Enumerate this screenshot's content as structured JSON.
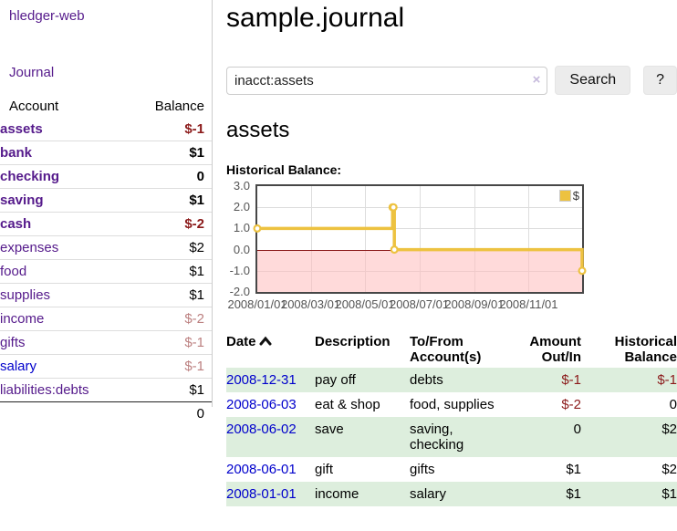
{
  "brand": "hledger-web",
  "colors": {
    "link_purple": "#551A8B",
    "link_blue": "#0000CC",
    "negative_strong": "#8B1A1A",
    "negative_dim": "#BC8080",
    "row_stripe_green": "#DDEEDD",
    "chart_series_gold": "#EDC240",
    "chart_negative_region": "#FFD9D9",
    "chart_zero_line": "#8B1A1A"
  },
  "sidebar": {
    "journal_link": "Journal",
    "header": {
      "account": "Account",
      "balance": "Balance"
    },
    "accounts": [
      {
        "name": "assets",
        "indent": 1,
        "bold": true,
        "dim": false,
        "blue": false,
        "balance": "$-1"
      },
      {
        "name": "bank",
        "indent": 2,
        "bold": true,
        "dim": false,
        "blue": false,
        "balance": "$1"
      },
      {
        "name": "checking",
        "indent": 3,
        "bold": true,
        "dim": false,
        "blue": false,
        "balance": "0"
      },
      {
        "name": "saving",
        "indent": 3,
        "bold": true,
        "dim": false,
        "blue": false,
        "balance": "$1"
      },
      {
        "name": "cash",
        "indent": 2,
        "bold": true,
        "dim": false,
        "blue": false,
        "balance": "$-2"
      },
      {
        "name": "expenses",
        "indent": 1,
        "bold": false,
        "dim": false,
        "blue": false,
        "balance": "$2"
      },
      {
        "name": "food",
        "indent": 2,
        "bold": false,
        "dim": false,
        "blue": false,
        "balance": "$1"
      },
      {
        "name": "supplies",
        "indent": 2,
        "bold": false,
        "dim": false,
        "blue": false,
        "balance": "$1"
      },
      {
        "name": "income",
        "indent": 1,
        "bold": false,
        "dim": true,
        "blue": false,
        "balance": "$-2"
      },
      {
        "name": "gifts",
        "indent": 2,
        "bold": false,
        "dim": true,
        "blue": false,
        "balance": "$-1"
      },
      {
        "name": "salary",
        "indent": 2,
        "bold": false,
        "dim": true,
        "blue": true,
        "balance": "$-1"
      },
      {
        "name": "liabilities:debts",
        "indent": 1,
        "bold": false,
        "dim": false,
        "blue": false,
        "balance": "$1"
      }
    ],
    "total": "0"
  },
  "main": {
    "title": "sample.journal",
    "search": {
      "value": "inacct:assets",
      "clear_icon": "×",
      "search_label": "Search",
      "help_label": "?"
    },
    "account_heading": "assets",
    "chart_label": "Historical Balance:"
  },
  "chart_data": {
    "type": "line",
    "title": "Historical Balance",
    "step": true,
    "series": [
      {
        "name": "$",
        "color": "#EDC240",
        "points": [
          {
            "x": "2008-01-01",
            "y": 1
          },
          {
            "x": "2008-06-01",
            "y": 2
          },
          {
            "x": "2008-06-02",
            "y": 2
          },
          {
            "x": "2008-06-03",
            "y": 0
          },
          {
            "x": "2008-12-31",
            "y": -1
          }
        ]
      }
    ],
    "xlim": [
      "2008-01-01",
      "2008-12-31"
    ],
    "ylim": [
      -2,
      3
    ],
    "yticks": [
      3.0,
      2.0,
      1.0,
      0.0,
      -1.0,
      -2.0
    ],
    "ytick_labels": [
      "3.0",
      "2.0",
      "1.0",
      "0.0",
      "-1.0",
      "-2.0"
    ],
    "xticks": [
      "2008/01/01",
      "2008/03/01",
      "2008/05/01",
      "2008/07/01",
      "2008/09/01",
      "2008/11/01"
    ],
    "grid": true,
    "legend": {
      "label": "$",
      "position": "top-right"
    },
    "negative_region_shaded": true
  },
  "register": {
    "headers": [
      "Date",
      "Description",
      "To/From Account(s)",
      "Amount Out/In",
      "Historical Balance"
    ],
    "rows": [
      {
        "date": "2008-12-31",
        "description": "pay off",
        "accounts": "debts",
        "amount": "$-1",
        "balance": "$-1"
      },
      {
        "date": "2008-06-03",
        "description": "eat & shop",
        "accounts": "food, supplies",
        "amount": "$-2",
        "balance": "0"
      },
      {
        "date": "2008-06-02",
        "description": "save",
        "accounts": "saving, checking",
        "amount": "0",
        "balance": "$2"
      },
      {
        "date": "2008-06-01",
        "description": "gift",
        "accounts": "gifts",
        "amount": "$1",
        "balance": "$2"
      },
      {
        "date": "2008-01-01",
        "description": "income",
        "accounts": "salary",
        "amount": "$1",
        "balance": "$1"
      }
    ]
  }
}
